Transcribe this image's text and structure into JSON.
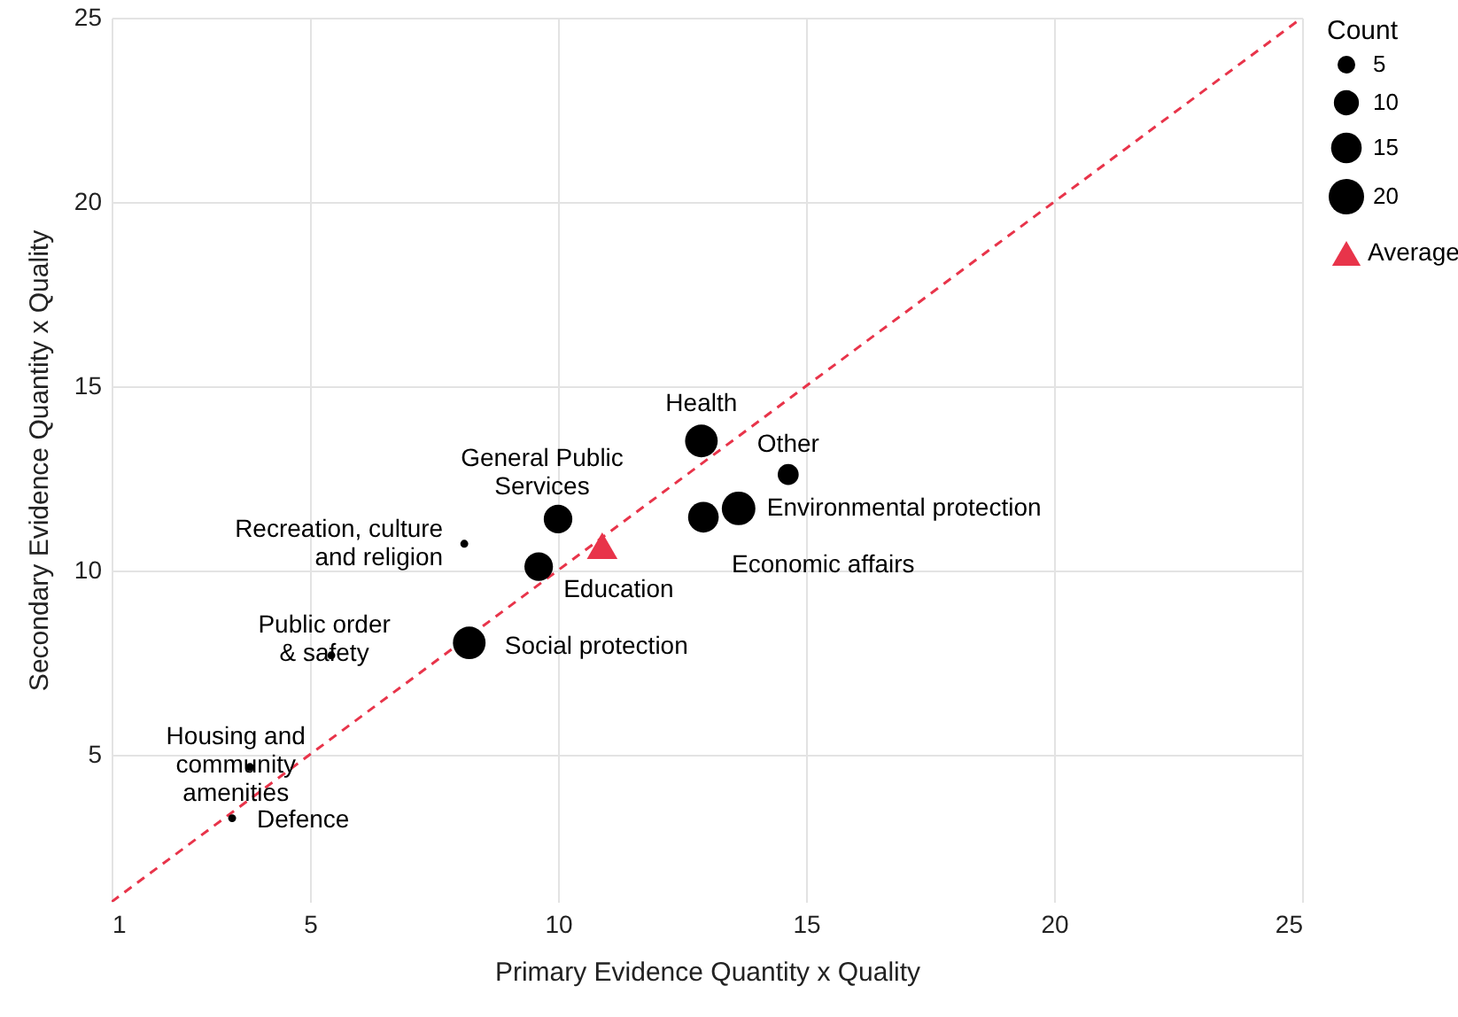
{
  "chart_data": {
    "type": "bubble",
    "xlabel": "Primary Evidence Quantity x Quality",
    "ylabel": "Secondary Evidence Quantity x Quality",
    "xlim": [
      1,
      25
    ],
    "ylim": [
      1,
      25
    ],
    "xticks": [
      1,
      5,
      10,
      15,
      20,
      25
    ],
    "yticks": [
      5,
      10,
      15,
      20,
      25
    ],
    "grid": true,
    "legend": "right",
    "legend_title": "Count",
    "size_legend": [
      5,
      10,
      15,
      20
    ],
    "marker": "circle",
    "series": [
      {
        "color": "#000000",
        "x": [
          3.43,
          3.79,
          5.43,
          8.11,
          8.21,
          9.61,
          10.0,
          12.89,
          12.93,
          13.64,
          14.64
        ],
        "values": [
          3.27,
          4.66,
          7.69,
          10.72,
          8.03,
          10.1,
          11.39,
          13.51,
          11.44,
          11.68,
          12.6
        ],
        "sizes": [
          1,
          1,
          1,
          1,
          17,
          13,
          13,
          17,
          15,
          18,
          7
        ]
      },
      {
        "type": "scatter",
        "name": "Average",
        "marker": "triangle",
        "color": "#e8344a",
        "x": [
          10.89
        ],
        "values": [
          10.67
        ]
      },
      {
        "type": "line",
        "color": "#e8344a",
        "line_style": "dashed",
        "marker": "none",
        "x": [
          1,
          25
        ],
        "values": [
          1,
          25
        ]
      }
    ],
    "annotations": [
      {
        "text": "Defence",
        "x": 3.43,
        "y": 3.27
      },
      {
        "text": "Housing and\ncommunity\namenities",
        "x": 3.79,
        "y": 4.66
      },
      {
        "text": "Public order\n& safety",
        "x": 5.43,
        "y": 7.69
      },
      {
        "text": "Recreation, culture\nand religion",
        "x": 8.11,
        "y": 10.72
      },
      {
        "text": "Social protection",
        "x": 8.21,
        "y": 8.03
      },
      {
        "text": "Education",
        "x": 9.61,
        "y": 10.1
      },
      {
        "text": "General Public\nServices",
        "x": 10.0,
        "y": 11.39
      },
      {
        "text": "Health",
        "x": 12.89,
        "y": 13.51
      },
      {
        "text": "Economic affairs",
        "x": 12.93,
        "y": 11.44
      },
      {
        "text": "Environmental protection",
        "x": 13.64,
        "y": 11.68
      },
      {
        "text": "Other",
        "x": 14.64,
        "y": 12.6
      }
    ]
  }
}
